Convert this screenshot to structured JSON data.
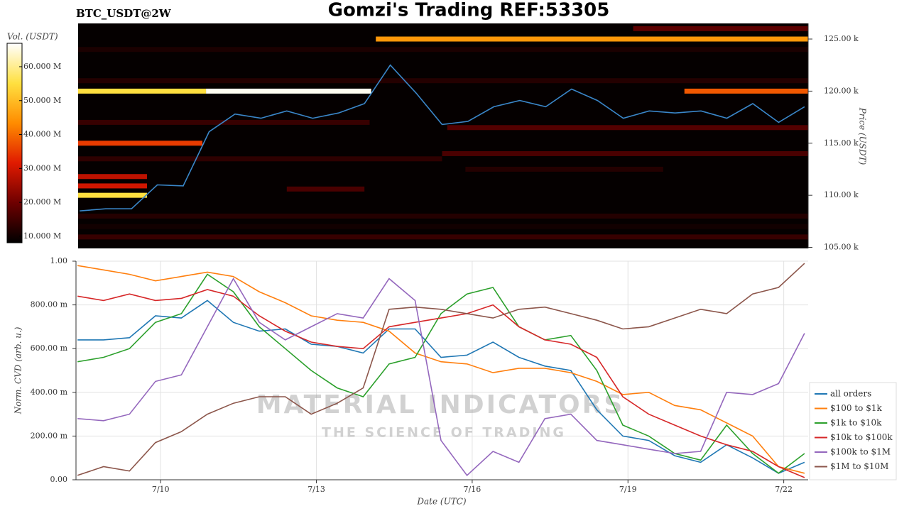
{
  "chart_data": [
    {
      "type": "heatmap",
      "title": "Gomzi's Trading REF:53305",
      "subtitle": "BTC_USDT@2W",
      "y_label": "Price (USDT)",
      "colorbar_label": "Vol. (USDT)",
      "xlim": [
        8.37,
        22.47
      ],
      "ylim": [
        104900,
        126500
      ],
      "yticks": [
        {
          "value": 105000,
          "label": "105.00 k"
        },
        {
          "value": 110000,
          "label": "110.00 k"
        },
        {
          "value": 115000,
          "label": "115.00 k"
        },
        {
          "value": 120000,
          "label": "120.00 k"
        },
        {
          "value": 125000,
          "label": "125.00 k"
        }
      ],
      "clim": [
        8100000,
        66900000
      ],
      "cticks": [
        {
          "value": 10000000,
          "label": "10.000 M"
        },
        {
          "value": 20000000,
          "label": "20.000 M"
        },
        {
          "value": 30000000,
          "label": "30.000 M"
        },
        {
          "value": 40000000,
          "label": "40.000 M"
        },
        {
          "value": 50000000,
          "label": "50.000 M"
        },
        {
          "value": 60000000,
          "label": "60.000 M"
        }
      ],
      "colormap": [
        "#000000",
        "#6e0000",
        "#e01a00",
        "#ff8c00",
        "#ffe040",
        "#ffffff"
      ],
      "background": "#050000",
      "levels": [
        {
          "price": 124000,
          "start": 8.37,
          "end": 22.47,
          "volume": 11000000
        },
        {
          "price": 126000,
          "start": 19.09,
          "end": 22.47,
          "volume": 18000000
        },
        {
          "price": 125000,
          "start": 14.12,
          "end": 22.47,
          "volume": 45000000
        },
        {
          "price": 121000,
          "start": 8.37,
          "end": 22.47,
          "volume": 12000000
        },
        {
          "price": 120000,
          "start": 8.37,
          "end": 10.84,
          "volume": 55000000
        },
        {
          "price": 120000,
          "start": 10.84,
          "end": 14.03,
          "volume": 66000000
        },
        {
          "price": 120000,
          "start": 20.08,
          "end": 22.47,
          "volume": 38000000
        },
        {
          "price": 117000,
          "start": 8.37,
          "end": 14.0,
          "volume": 14000000
        },
        {
          "price": 116500,
          "start": 15.5,
          "end": 22.47,
          "volume": 17000000
        },
        {
          "price": 115000,
          "start": 8.37,
          "end": 10.77,
          "volume": 35000000
        },
        {
          "price": 114000,
          "start": 15.4,
          "end": 22.47,
          "volume": 16000000
        },
        {
          "price": 113500,
          "start": 8.37,
          "end": 15.4,
          "volume": 13000000
        },
        {
          "price": 112500,
          "start": 15.85,
          "end": 19.67,
          "volume": 12000000
        },
        {
          "price": 111800,
          "start": 8.37,
          "end": 9.7,
          "volume": 28000000
        },
        {
          "price": 110900,
          "start": 8.37,
          "end": 9.7,
          "volume": 30000000
        },
        {
          "price": 110000,
          "start": 8.37,
          "end": 9.7,
          "volume": 55000000
        },
        {
          "price": 110600,
          "start": 12.4,
          "end": 13.9,
          "volume": 16000000
        },
        {
          "price": 108000,
          "start": 8.37,
          "end": 22.47,
          "volume": 12000000
        },
        {
          "price": 107000,
          "start": 8.37,
          "end": 22.47,
          "volume": 10000000
        },
        {
          "price": 106000,
          "start": 8.37,
          "end": 22.47,
          "volume": 14000000
        }
      ],
      "price": {
        "color": "#3a86c8",
        "x": [
          8.4,
          8.9,
          9.4,
          9.9,
          10.4,
          10.9,
          11.4,
          11.9,
          12.4,
          12.9,
          13.4,
          13.9,
          14.4,
          14.9,
          15.4,
          15.9,
          16.4,
          16.9,
          17.4,
          17.9,
          18.4,
          18.9,
          19.4,
          19.9,
          20.4,
          20.9,
          21.4,
          21.9,
          22.4
        ],
        "values": [
          108500,
          108700,
          108700,
          111000,
          110900,
          116100,
          117800,
          117400,
          118100,
          117400,
          117900,
          118800,
          122500,
          119800,
          116800,
          117100,
          118500,
          119100,
          118500,
          120200,
          119100,
          117400,
          118100,
          117900,
          118100,
          117400,
          118800,
          117000,
          118500
        ]
      }
    },
    {
      "type": "line",
      "x_label": "Date (UTC)",
      "y_label": "Norm. CVD (arb. u.)",
      "xlim": [
        8.37,
        22.47
      ],
      "ylim": [
        0,
        1
      ],
      "xticks": [
        {
          "value": 10,
          "label": "7/10"
        },
        {
          "value": 13,
          "label": "7/13"
        },
        {
          "value": 16,
          "label": "7/16"
        },
        {
          "value": 19,
          "label": "7/19"
        },
        {
          "value": 22,
          "label": "7/22"
        }
      ],
      "yticks": [
        {
          "value": 0,
          "label": "0.00"
        },
        {
          "value": 0.2,
          "label": "200.00 m"
        },
        {
          "value": 0.4,
          "label": "400.00 m"
        },
        {
          "value": 0.6,
          "label": "600.00 m"
        },
        {
          "value": 0.8,
          "label": "800.00 m"
        },
        {
          "value": 1,
          "label": "1.00"
        }
      ],
      "grid": true,
      "legend": "lower right",
      "watermark": [
        "MATERIAL INDICATORS",
        "THE SCIENCE OF TRADING"
      ],
      "x": [
        8.4,
        8.9,
        9.4,
        9.9,
        10.4,
        10.9,
        11.4,
        11.9,
        12.4,
        12.9,
        13.4,
        13.9,
        14.4,
        14.9,
        15.4,
        15.9,
        16.4,
        16.9,
        17.4,
        17.9,
        18.4,
        18.9,
        19.4,
        19.9,
        20.4,
        20.9,
        21.4,
        21.9,
        22.4
      ],
      "series": [
        {
          "name": "all orders",
          "color": "#1f77b4",
          "values": [
            0.64,
            0.64,
            0.65,
            0.75,
            0.74,
            0.82,
            0.72,
            0.68,
            0.69,
            0.62,
            0.61,
            0.58,
            0.69,
            0.69,
            0.56,
            0.57,
            0.63,
            0.56,
            0.52,
            0.5,
            0.32,
            0.2,
            0.18,
            0.11,
            0.08,
            0.16,
            0.1,
            0.03,
            0.08
          ]
        },
        {
          "name": "$100 to $1k",
          "color": "#ff7f0e",
          "values": [
            0.98,
            0.96,
            0.94,
            0.91,
            0.93,
            0.95,
            0.93,
            0.86,
            0.81,
            0.75,
            0.73,
            0.72,
            0.68,
            0.58,
            0.54,
            0.53,
            0.49,
            0.51,
            0.51,
            0.49,
            0.45,
            0.39,
            0.4,
            0.34,
            0.32,
            0.26,
            0.2,
            0.06,
            0.03
          ]
        },
        {
          "name": "$1k to $10k",
          "color": "#2ca02c",
          "values": [
            0.54,
            0.56,
            0.6,
            0.72,
            0.76,
            0.94,
            0.86,
            0.7,
            0.6,
            0.5,
            0.42,
            0.38,
            0.53,
            0.56,
            0.76,
            0.85,
            0.88,
            0.7,
            0.64,
            0.66,
            0.5,
            0.25,
            0.2,
            0.12,
            0.09,
            0.25,
            0.12,
            0.03,
            0.12
          ]
        },
        {
          "name": "$10k to $100k",
          "color": "#d62728",
          "values": [
            0.84,
            0.82,
            0.85,
            0.82,
            0.83,
            0.87,
            0.84,
            0.75,
            0.68,
            0.63,
            0.61,
            0.6,
            0.7,
            0.72,
            0.74,
            0.76,
            0.8,
            0.7,
            0.64,
            0.62,
            0.56,
            0.38,
            0.3,
            0.25,
            0.2,
            0.16,
            0.13,
            0.06,
            0.01
          ]
        },
        {
          "name": "$100k to $1M",
          "color": "#9467bd",
          "values": [
            0.28,
            0.27,
            0.3,
            0.45,
            0.48,
            0.7,
            0.92,
            0.72,
            0.64,
            0.7,
            0.76,
            0.74,
            0.92,
            0.82,
            0.18,
            0.02,
            0.13,
            0.08,
            0.28,
            0.3,
            0.18,
            0.16,
            0.14,
            0.12,
            0.13,
            0.4,
            0.39,
            0.44,
            0.67
          ]
        },
        {
          "name": "$1M to $10M",
          "color": "#8c564b",
          "values": [
            0.02,
            0.06,
            0.04,
            0.17,
            0.22,
            0.3,
            0.35,
            0.38,
            0.38,
            0.3,
            0.35,
            0.42,
            0.78,
            0.79,
            0.78,
            0.76,
            0.74,
            0.78,
            0.79,
            0.76,
            0.73,
            0.69,
            0.7,
            0.74,
            0.78,
            0.76,
            0.85,
            0.88,
            0.99
          ]
        }
      ]
    }
  ]
}
